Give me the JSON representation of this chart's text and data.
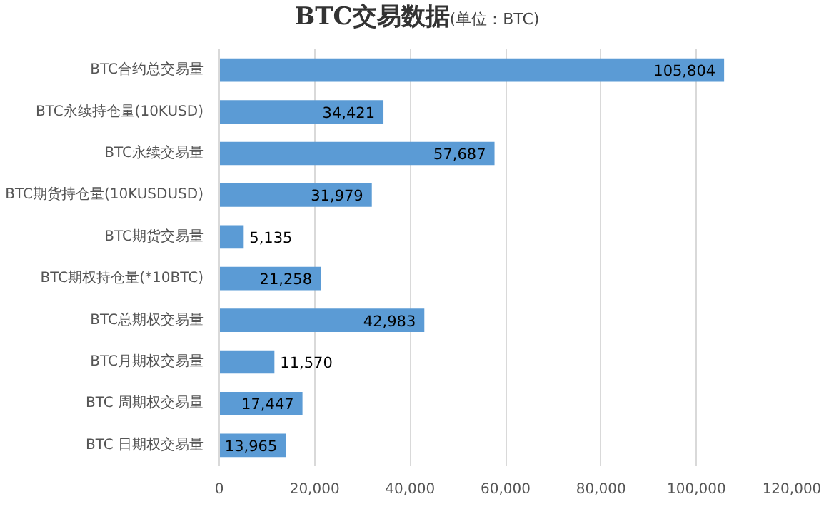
{
  "chart_data": {
    "type": "bar",
    "orientation": "horizontal",
    "title": "BTC交易数据",
    "subtitle": "(单位：BTC)",
    "categories": [
      "BTC合约总交易量",
      "BTC永续持仓量(10KUSD)",
      "BTC永续交易量",
      "BTC期货持仓量(10KUSDUSD)",
      "BTC期货交易量",
      "BTC期权持仓量(*10BTC)",
      "BTC总期权交易量",
      "BTC月期权交易量",
      "BTC 周期权交易量",
      "BTC 日期权交易量"
    ],
    "values": [
      105804,
      34421,
      57687,
      31979,
      5135,
      21258,
      42983,
      11570,
      17447,
      13965
    ],
    "value_labels": [
      "105,804",
      "34,421",
      "57,687",
      "31,979",
      "5,135",
      "21,258",
      "42,983",
      "11,570",
      "17,447",
      "13,965"
    ],
    "color": "#5b9bd5",
    "grid": "x",
    "xlim": [
      0,
      120000
    ],
    "xticks": [
      {
        "value": 0,
        "label": "0"
      },
      {
        "value": 20000,
        "label": "20,000"
      },
      {
        "value": 40000,
        "label": "40,000"
      },
      {
        "value": 60000,
        "label": "60,000"
      },
      {
        "value": 80000,
        "label": "80,000"
      },
      {
        "value": 100000,
        "label": "100,000"
      },
      {
        "value": 120000,
        "label": "120,000"
      }
    ]
  }
}
